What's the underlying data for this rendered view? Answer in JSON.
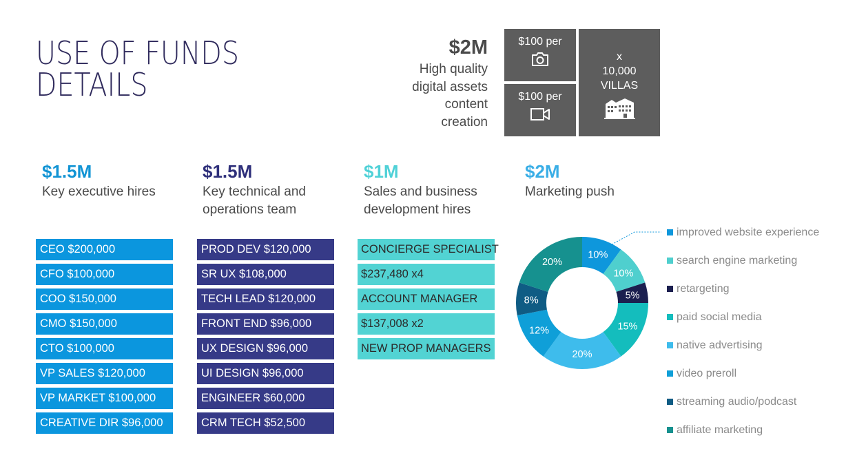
{
  "title": {
    "line1": "USE OF FUNDS",
    "line2": "DETAILS"
  },
  "digital_assets": {
    "amount": "$2M",
    "description": [
      "High quality",
      "digital assets",
      "content",
      "creation"
    ],
    "photo_label": "$100 per",
    "video_label": "$100 per",
    "villas_lines": [
      "x",
      "10,000",
      "VILLAS"
    ],
    "icons": {
      "photo": "camera-icon",
      "video": "video-camera-icon",
      "villas": "villa-buildings-icon"
    }
  },
  "columns": {
    "exec": {
      "amount": "$1.5M",
      "description": [
        "Key executive hires"
      ],
      "items": [
        "CEO $200,000",
        "CFO $100,000",
        "COO $150,000",
        "CMO $150,000",
        "CTO $100,000",
        "VP SALES $120,000",
        "VP MARKET $100,000",
        "CREATIVE DIR $96,000"
      ]
    },
    "tech": {
      "amount": "$1.5M",
      "description": [
        "Key technical and",
        "operations team"
      ],
      "items": [
        "PROD DEV $120,000",
        "SR UX $108,000",
        "TECH LEAD $120,000",
        "FRONT END $96,000",
        "UX DESIGN $96,000",
        "UI DESIGN $96,000",
        "ENGINEER $60,000",
        "CRM TECH $52,500"
      ]
    },
    "sales": {
      "amount": "$1M",
      "description": [
        "Sales and business",
        "development hires"
      ],
      "items": [
        "CONCIERGE SPECIALIST",
        "$237,480 x4",
        "ACCOUNT MANAGER",
        "$137,008 x2",
        "NEW PROP MANAGERS"
      ]
    },
    "mkt": {
      "amount": "$2M",
      "description": [
        "Marketing push"
      ]
    }
  },
  "chart_data": {
    "type": "pie",
    "donut": true,
    "title": "Marketing push",
    "categories": [
      "improved website experience",
      "search engine marketing",
      "retargeting",
      "paid social media",
      "native advertising",
      "video preroll",
      "streaming audio/podcast",
      "affiliate marketing"
    ],
    "values": [
      10,
      10,
      5,
      15,
      20,
      12,
      8,
      20
    ],
    "labels": [
      "10%",
      "10%",
      "5%",
      "15%",
      "20%",
      "12%",
      "8%",
      "20%"
    ],
    "colors": [
      "#0e97dc",
      "#4fcfce",
      "#1b1f4f",
      "#14bdbd",
      "#3ebcec",
      "#0f9fd8",
      "#0f5c84",
      "#16918f"
    ],
    "legend_position": "right"
  }
}
